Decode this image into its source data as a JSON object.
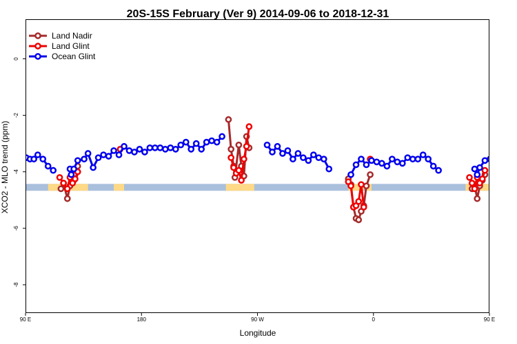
{
  "chart_data": {
    "type": "line",
    "title": "20S-15S February (Ver 9)   2014-09-06 to 2018-12-31",
    "xlabel": "Longitude",
    "ylabel": "XCO2 - MLO trend (ppm)",
    "xlim": [
      0,
      360
    ],
    "ylim": [
      -9.0,
      1.4
    ],
    "x_ticks": [
      {
        "value": 0,
        "label": "90 E"
      },
      {
        "value": 90,
        "label": "180"
      },
      {
        "value": 180,
        "label": "90 W"
      },
      {
        "value": 270,
        "label": "0"
      },
      {
        "value": 360,
        "label": "90 E"
      },
      {
        "value": 450,
        "label": "180"
      }
    ],
    "y_ticks": [
      {
        "value": 0,
        "label": "0"
      },
      {
        "value": -2,
        "label": "-2"
      },
      {
        "value": -4,
        "label": "-4"
      },
      {
        "value": -6,
        "label": "-6"
      },
      {
        "value": -8,
        "label": "-8"
      }
    ],
    "legend_position": "top-left",
    "series": [
      {
        "name": "Land Nadir",
        "color": "#a52a2a",
        "segments": [
          [
            [
              27.5,
              -4.6
            ],
            [
              29.5,
              -4.4
            ],
            [
              32.5,
              -4.95
            ],
            [
              34.5,
              -4.5
            ],
            [
              37.5,
              -4.3
            ],
            [
              38.5,
              -4.1
            ],
            [
              40.5,
              -3.8
            ]
          ],
          [
            [
              157.5,
              -2.15
            ],
            [
              159.5,
              -3.2
            ],
            [
              161.5,
              -3.8
            ],
            [
              162.5,
              -4.2
            ],
            [
              165.5,
              -3.05
            ],
            [
              167.5,
              -3.8
            ],
            [
              169.5,
              -4.15
            ],
            [
              171.5,
              -2.75
            ],
            [
              173.5,
              -3.15
            ]
          ],
          [
            [
              250.5,
              -4.25
            ],
            [
              252.5,
              -4.45
            ],
            [
              254.5,
              -5.25
            ],
            [
              256.5,
              -5.65
            ],
            [
              258.5,
              -5.7
            ],
            [
              260.5,
              -5.4
            ],
            [
              262.5,
              -5.2
            ],
            [
              264.5,
              -4.5
            ],
            [
              267.5,
              -4.1
            ]
          ],
          [
            [
              346.5,
              -4.6
            ],
            [
              348.5,
              -4.45
            ],
            [
              350.5,
              -4.95
            ],
            [
              352.5,
              -4.5
            ],
            [
              354.5,
              -4.3
            ],
            [
              356.5,
              -4.1
            ]
          ]
        ]
      },
      {
        "name": "Land Glint",
        "color": "#ee0000",
        "segments": [
          [
            [
              26.5,
              -4.2
            ],
            [
              29.5,
              -4.4
            ],
            [
              32.5,
              -4.6
            ],
            [
              34.5,
              -4.2
            ],
            [
              36.5,
              -4.4
            ],
            [
              38.5,
              -4.25
            ],
            [
              40.5,
              -4.0
            ]
          ],
          [
            [
              73.5,
              -3.2
            ]
          ],
          [
            [
              159.5,
              -3.5
            ],
            [
              161.5,
              -3.85
            ],
            [
              163.5,
              -4.05
            ],
            [
              165.5,
              -3.95
            ],
            [
              167.5,
              -4.3
            ],
            [
              169.5,
              -3.55
            ],
            [
              171.5,
              -3.1
            ],
            [
              173.5,
              -2.4
            ]
          ],
          [
            [
              250.5,
              -4.35
            ],
            [
              252.5,
              -4.5
            ],
            [
              254.5,
              -5.25
            ],
            [
              256.5,
              -5.2
            ],
            [
              258.5,
              -5.05
            ],
            [
              260.5,
              -4.45
            ],
            [
              262.5,
              -5.25
            ]
          ],
          [
            [
              267.5,
              -3.55
            ]
          ],
          [
            [
              344.5,
              -4.2
            ],
            [
              346.5,
              -4.4
            ],
            [
              348.5,
              -4.6
            ],
            [
              350.5,
              -4.2
            ],
            [
              352.5,
              -4.4
            ],
            [
              354.5,
              -4.25
            ],
            [
              356.5,
              -3.95
            ]
          ]
        ]
      },
      {
        "name": "Ocean Glint",
        "color": "#0000ee",
        "segments": [
          [
            [
              0.5,
              -3.5
            ],
            [
              3.5,
              -3.55
            ],
            [
              6.5,
              -3.55
            ],
            [
              9.5,
              -3.4
            ],
            [
              13.5,
              -3.55
            ],
            [
              17.5,
              -3.8
            ],
            [
              21.5,
              -3.95
            ]
          ],
          [
            [
              34.5,
              -3.9
            ],
            [
              35.5,
              -4.1
            ],
            [
              37.5,
              -3.9
            ],
            [
              40.5,
              -3.6
            ],
            [
              45.5,
              -3.55
            ],
            [
              48.5,
              -3.35
            ],
            [
              52.5,
              -3.85
            ],
            [
              56.5,
              -3.5
            ],
            [
              60.5,
              -3.4
            ],
            [
              64.5,
              -3.45
            ],
            [
              68.5,
              -3.25
            ],
            [
              72.5,
              -3.4
            ],
            [
              76.5,
              -3.1
            ],
            [
              80.5,
              -3.25
            ],
            [
              84.5,
              -3.3
            ],
            [
              88.5,
              -3.2
            ],
            [
              92.5,
              -3.3
            ],
            [
              96.5,
              -3.15
            ],
            [
              100.5,
              -3.15
            ],
            [
              104.5,
              -3.15
            ],
            [
              108.5,
              -3.2
            ],
            [
              112.5,
              -3.15
            ],
            [
              116.5,
              -3.2
            ],
            [
              120.5,
              -3.05
            ],
            [
              124.5,
              -2.95
            ],
            [
              128.5,
              -3.2
            ],
            [
              132.5,
              -3.0
            ],
            [
              136.5,
              -3.2
            ],
            [
              140.5,
              -2.95
            ],
            [
              144.5,
              -2.9
            ],
            [
              148.5,
              -2.95
            ],
            [
              152.5,
              -2.75
            ]
          ],
          [
            [
              187.5,
              -3.05
            ],
            [
              191.5,
              -3.3
            ],
            [
              195.5,
              -3.1
            ],
            [
              199.5,
              -3.35
            ],
            [
              203.5,
              -3.25
            ],
            [
              207.5,
              -3.55
            ],
            [
              211.5,
              -3.35
            ],
            [
              215.5,
              -3.5
            ],
            [
              219.5,
              -3.6
            ],
            [
              223.5,
              -3.4
            ],
            [
              227.5,
              -3.5
            ],
            [
              231.5,
              -3.55
            ],
            [
              235.5,
              -3.9
            ]
          ],
          [
            [
              252.5,
              -4.1
            ],
            [
              256.5,
              -3.75
            ],
            [
              260.5,
              -3.55
            ],
            [
              264.5,
              -3.75
            ],
            [
              268.5,
              -3.6
            ],
            [
              272.5,
              -3.65
            ],
            [
              276.5,
              -3.7
            ],
            [
              280.5,
              -3.8
            ],
            [
              284.5,
              -3.55
            ],
            [
              288.5,
              -3.65
            ],
            [
              292.5,
              -3.7
            ],
            [
              296.5,
              -3.5
            ],
            [
              300.5,
              -3.55
            ],
            [
              304.5,
              -3.55
            ],
            [
              308.5,
              -3.4
            ],
            [
              312.5,
              -3.55
            ],
            [
              316.5,
              -3.8
            ],
            [
              320.5,
              -3.95
            ]
          ],
          [
            [
              348.5,
              -3.9
            ],
            [
              350.5,
              -4.1
            ],
            [
              352.5,
              -3.85
            ],
            [
              356.5,
              -3.6
            ],
            [
              360.5,
              -3.55
            ],
            [
              364.5,
              -3.4
            ],
            [
              368.5,
              -3.85
            ],
            [
              372.5,
              -3.5
            ],
            [
              376.5,
              -3.4
            ],
            [
              380.5,
              -3.45
            ]
          ]
        ]
      }
    ],
    "bottom_band": {
      "y": -4.55,
      "ocean_color": "#a9bfdc",
      "land_color": "#ffd986",
      "land_ranges": [
        [
          17.5,
          48.5
        ],
        [
          68.5,
          76.5
        ],
        [
          155.5,
          177.5
        ],
        [
          250.5,
          262.5
        ],
        [
          264.5,
          268.5
        ],
        [
          341.5,
          360
        ]
      ]
    }
  }
}
